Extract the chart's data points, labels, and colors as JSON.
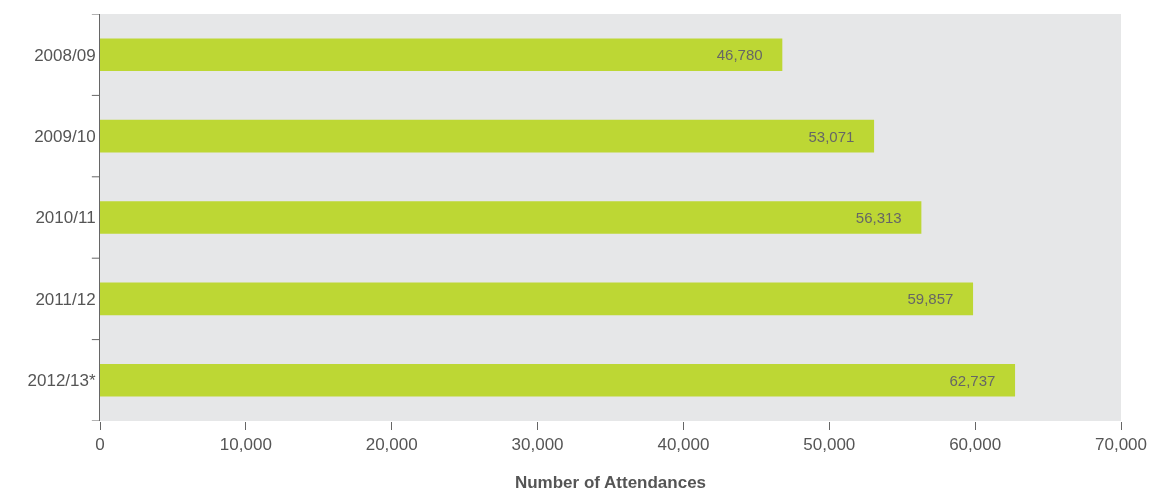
{
  "chart_data": {
    "type": "bar",
    "orientation": "horizontal",
    "xlabel": "Number of Attendances",
    "categories": [
      "2008/09",
      "2009/10",
      "2010/11",
      "2011/12",
      "2012/13*"
    ],
    "values": [
      46780,
      53071,
      56313,
      59857,
      62737
    ],
    "color": "#bdd734",
    "value_labels": [
      "46,780",
      "53,071",
      "56,313",
      "59,857",
      "62,737"
    ],
    "xlim": [
      0,
      70000
    ],
    "xticks": [
      0,
      {
        "value": 10000,
        "label": "10,000"
      },
      {
        "value": 20000,
        "label": "20,000"
      },
      {
        "value": 30000,
        "label": "30,000"
      },
      {
        "value": 40000,
        "label": "40,000"
      },
      {
        "value": 50000,
        "label": "50,000"
      },
      {
        "value": 60000,
        "label": "60,000"
      },
      {
        "value": 70000,
        "label": "70,000"
      }
    ],
    "grid": false,
    "legend": false
  }
}
